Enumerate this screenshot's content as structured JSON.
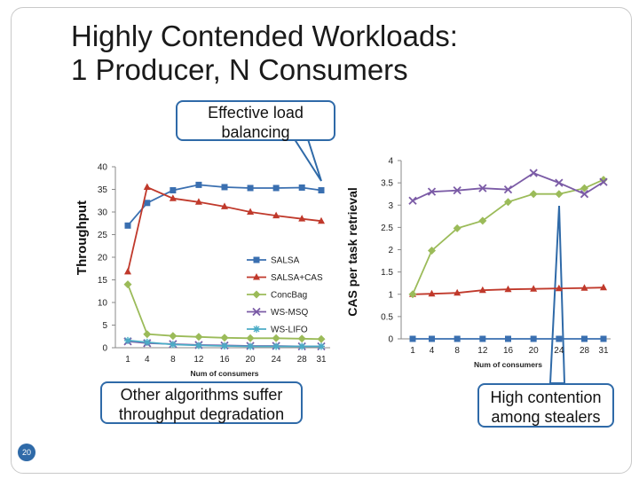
{
  "slide": {
    "title_lines": [
      "Highly Contended Workloads:",
      "1 Producer, N Consumers"
    ],
    "slide_number": "20"
  },
  "callouts": {
    "effective": [
      "Effective load",
      "balancing"
    ],
    "other": [
      "Other algorithms suffer",
      "throughput degradation"
    ],
    "contention": [
      "High contention",
      "among stealers"
    ]
  },
  "colors": {
    "SALSA": "#3a6fb0",
    "SALSA+CAS": "#c0392b",
    "ConcBag": "#9bbb59",
    "WS-MSQ": "#7b5ba6",
    "WS-LIFO": "#4bacc6",
    "callout_border": "#2f6aa8"
  },
  "chart_data": [
    {
      "type": "line",
      "title": "",
      "xlabel": "Num of consumers",
      "ylabel": "Throughput",
      "y_axis_position": "left",
      "ylim": [
        0,
        40
      ],
      "yticks": [
        "0",
        "5",
        "10",
        "15",
        "20",
        "25",
        "30",
        "35",
        "40"
      ],
      "xticks": [
        "1",
        "4",
        "8",
        "12",
        "16",
        "20",
        "24",
        "28",
        "31"
      ],
      "x": [
        1,
        4,
        8,
        12,
        16,
        20,
        24,
        28,
        31
      ],
      "legend_placement": "right",
      "series": [
        {
          "name": "SALSA",
          "marker": "square",
          "values": [
            27,
            32,
            34.8,
            36,
            35.5,
            35.3,
            35.3,
            35.4,
            34.8
          ]
        },
        {
          "name": "SALSA+CAS",
          "marker": "triangle",
          "values": [
            16.8,
            35.5,
            33,
            32.2,
            31.2,
            30,
            29.2,
            28.5,
            28
          ]
        },
        {
          "name": "ConcBag",
          "marker": "diamond",
          "values": [
            14,
            3,
            2.6,
            2.4,
            2.2,
            2.1,
            2.1,
            2,
            1.9
          ]
        },
        {
          "name": "WS-MSQ",
          "marker": "x",
          "values": [
            1.4,
            1,
            0.8,
            0.6,
            0.5,
            0.4,
            0.4,
            0.3,
            0.3
          ]
        },
        {
          "name": "WS-LIFO",
          "marker": "star",
          "values": [
            1.6,
            1.2,
            0.7,
            0.5,
            0.4,
            0.3,
            0.3,
            0.3,
            0.3
          ]
        }
      ]
    },
    {
      "type": "line",
      "title": "",
      "xlabel": "Num of consumers",
      "ylabel": "CAS per task retrieval",
      "y_axis_position": "left",
      "ylim": [
        0,
        4
      ],
      "yticks": [
        "0",
        "0.5",
        "1",
        "1.5",
        "2",
        "2.5",
        "3",
        "3.5",
        "4"
      ],
      "xticks": [
        "1",
        "4",
        "8",
        "12",
        "16",
        "20",
        "24",
        "28",
        "31"
      ],
      "x": [
        1,
        4,
        8,
        12,
        16,
        20,
        24,
        28,
        31
      ],
      "series": [
        {
          "name": "SALSA",
          "marker": "square",
          "values": [
            0,
            0,
            0,
            0,
            0,
            0,
            0,
            0,
            0
          ]
        },
        {
          "name": "SALSA+CAS",
          "marker": "triangle",
          "values": [
            1,
            1.01,
            1.03,
            1.09,
            1.11,
            1.12,
            1.13,
            1.14,
            1.15
          ]
        },
        {
          "name": "ConcBag",
          "marker": "diamond",
          "values": [
            1,
            1.98,
            2.48,
            2.65,
            3.07,
            3.25,
            3.25,
            3.38,
            3.57
          ]
        },
        {
          "name": "WS-MSQ",
          "marker": "x",
          "values": [
            3.1,
            3.3,
            3.33,
            3.38,
            3.35,
            3.72,
            3.5,
            3.25,
            3.52
          ]
        }
      ]
    }
  ]
}
